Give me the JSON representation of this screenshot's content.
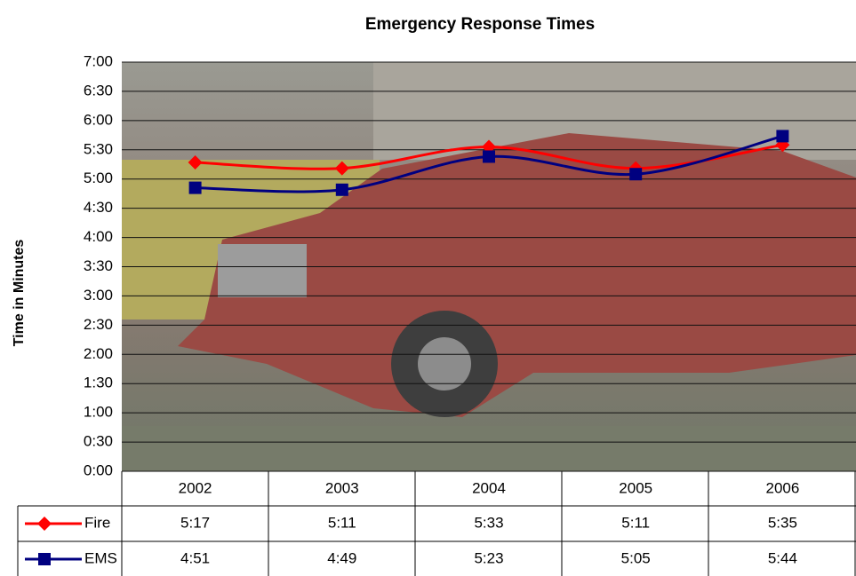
{
  "chart_data": {
    "type": "line",
    "title": "Emergency Response Times",
    "y_label": "Time in Minutes",
    "categories": [
      "2002",
      "2003",
      "2004",
      "2005",
      "2006"
    ],
    "series": [
      {
        "name": "Fire",
        "color": "#ff0000",
        "marker": "diamond",
        "values": [
          317,
          311,
          333,
          311,
          335
        ],
        "value_labels": [
          "5:17",
          "5:11",
          "5:33",
          "5:11",
          "5:35"
        ]
      },
      {
        "name": "EMS",
        "color": "#000080",
        "marker": "square",
        "values": [
          291,
          289,
          323,
          305,
          344
        ],
        "value_labels": [
          "4:51",
          "4:49",
          "5:23",
          "5:05",
          "5:44"
        ]
      }
    ],
    "ylim": [
      0,
      420
    ],
    "yticks": [
      {
        "value": 0,
        "label": "0:00"
      },
      {
        "value": 30,
        "label": "0:30"
      },
      {
        "value": 60,
        "label": "1:00"
      },
      {
        "value": 90,
        "label": "1:30"
      },
      {
        "value": 120,
        "label": "2:00"
      },
      {
        "value": 150,
        "label": "2:30"
      },
      {
        "value": 180,
        "label": "3:00"
      },
      {
        "value": 210,
        "label": "3:30"
      },
      {
        "value": 240,
        "label": "4:00"
      },
      {
        "value": 270,
        "label": "4:30"
      },
      {
        "value": 300,
        "label": "5:00"
      },
      {
        "value": 330,
        "label": "5:30"
      },
      {
        "value": 360,
        "label": "6:00"
      },
      {
        "value": 390,
        "label": "6:30"
      },
      {
        "value": 420,
        "label": "7:00"
      }
    ],
    "grid": true,
    "smooth": true
  }
}
